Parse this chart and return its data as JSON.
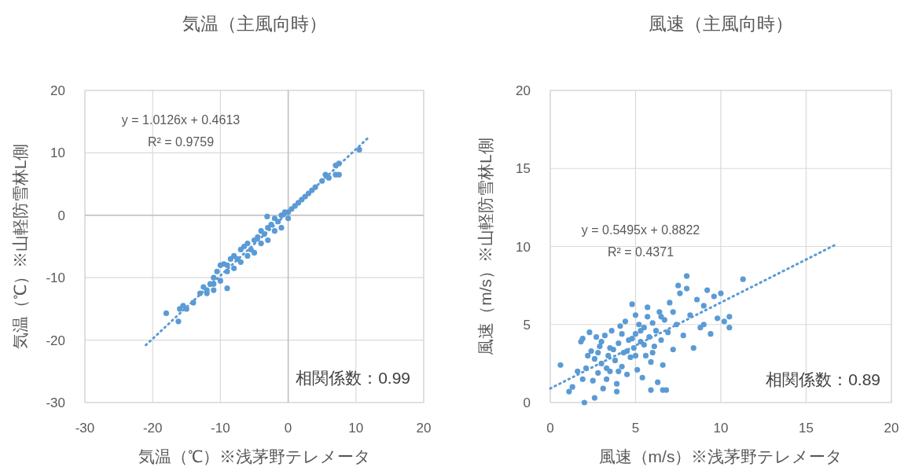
{
  "chart_data": [
    {
      "type": "scatter",
      "title": "気温（主風向時）",
      "xlabel": "気温（℃）※浅茅野テレメータ",
      "ylabel": "気温（℃）※山軽防雪林L側",
      "xlim": [
        -30,
        20
      ],
      "ylim": [
        -30,
        20
      ],
      "xticks": [
        -30,
        -20,
        -10,
        0,
        10,
        20
      ],
      "yticks": [
        -30,
        -20,
        -10,
        0,
        10,
        20
      ],
      "grid": true,
      "annotations": [
        "y = 1.0126x + 0.4613",
        "R² = 0.9759",
        "相関係数：0.99"
      ],
      "series": [
        {
          "color": "#5b9bd5",
          "marker": "circle",
          "x": [
            -18,
            -16.2,
            -16,
            -15.5,
            -15,
            -14,
            -13,
            -12.5,
            -12,
            -12,
            -11.5,
            -11,
            -11,
            -11,
            -10.5,
            -10,
            -10,
            -9.5,
            -9,
            -9,
            -9,
            -8.5,
            -8,
            -8,
            -7.5,
            -7,
            -7,
            -6.5,
            -6,
            -6,
            -5.5,
            -5,
            -5,
            -4.5,
            -4,
            -4,
            -3.5,
            -3.1,
            -3,
            -3,
            -2.5,
            -2,
            -2,
            -1.5,
            -1,
            -1,
            -0.5,
            0,
            0,
            0.5,
            1,
            1.5,
            2,
            2.5,
            3,
            3.5,
            4,
            5,
            5.5,
            6,
            7,
            7.5,
            7,
            7.5,
            10.5
          ],
          "values": [
            -15.7,
            -17,
            -15,
            -14.5,
            -15,
            -14,
            -12.5,
            -11.5,
            -12,
            -12.5,
            -11,
            -10,
            -12,
            -11,
            -9,
            -10.5,
            -8,
            -7.8,
            -9,
            -8,
            -11.7,
            -7,
            -8.5,
            -6.5,
            -7,
            -5.5,
            -7.5,
            -5,
            -6.5,
            -4.5,
            -5.5,
            -4,
            -6,
            -3.5,
            -4.5,
            -2.5,
            -3,
            -0.2,
            -2,
            -4,
            -1.5,
            -2.5,
            -0.5,
            -1,
            0,
            -2,
            0.5,
            0.5,
            -0.5,
            1,
            1.5,
            2,
            2.5,
            3,
            3.5,
            4,
            4.5,
            5.5,
            6.5,
            6,
            8,
            8.3,
            6.5,
            6.5,
            10.5
          ]
        },
        {
          "type": "line",
          "color": "#5b9bd5",
          "line_style": "dotted",
          "x": [
            -21,
            11.7
          ],
          "values": [
            -20.8,
            12.3
          ]
        }
      ]
    },
    {
      "type": "scatter",
      "title": "風速（主風向時）",
      "xlabel": "風速（m/s）※浅茅野テレメータ",
      "ylabel": "風速（m/s）※山軽防雪林L側",
      "xlim": [
        0,
        20
      ],
      "ylim": [
        0,
        20
      ],
      "xticks": [
        0,
        5,
        10,
        15,
        20
      ],
      "yticks": [
        0,
        5,
        10,
        15,
        20
      ],
      "grid": true,
      "annotations": [
        "y = 0.5495x + 0.8822",
        "R² = 0.4371",
        "相関係数：0.89"
      ],
      "series": [
        {
          "color": "#5b9bd5",
          "marker": "circle",
          "x": [
            0.6,
            1.1,
            1.3,
            1.6,
            1.8,
            1.9,
            2.0,
            2.1,
            2.3,
            2.4,
            2.5,
            2.6,
            2.7,
            2.8,
            2.9,
            3.0,
            3.1,
            3.2,
            3.3,
            3.4,
            3.5,
            3.6,
            3.7,
            3.8,
            3.9,
            4.0,
            4.1,
            4.2,
            4.3,
            4.4,
            4.5,
            4.6,
            4.7,
            4.8,
            4.9,
            5.0,
            5.1,
            5.2,
            5.3,
            5.4,
            5.5,
            5.6,
            5.7,
            5.8,
            5.9,
            6.0,
            6.1,
            6.2,
            6.3,
            6.4,
            6.5,
            6.6,
            6.7,
            6.8,
            6.9,
            7.0,
            7.2,
            7.4,
            7.6,
            7.8,
            8.0,
            8.2,
            8.4,
            8.6,
            8.8,
            9.0,
            9.2,
            9.4,
            9.6,
            9.8,
            10.0,
            10.2,
            10.5,
            10.5,
            11.3,
            2.2,
            3.0,
            3.5,
            4.0,
            4.5,
            5.0,
            5.5,
            6.0,
            4.2,
            3.3,
            2.8,
            4.8,
            5.3,
            6.5,
            7.2,
            7.5,
            8.0,
            9.0,
            1.9,
            2.6,
            3.9,
            5.9,
            6.6,
            5.7,
            5.0
          ],
          "values": [
            2.4,
            0.7,
            1.0,
            2.0,
            3.9,
            4.1,
            0.0,
            2.2,
            4.5,
            3.3,
            1.4,
            2.8,
            4.2,
            1.9,
            3.6,
            2.5,
            0.9,
            4.3,
            1.5,
            3.0,
            2.0,
            4.6,
            3.4,
            2.7,
            1.2,
            3.8,
            4.9,
            2.3,
            3.2,
            5.2,
            1.8,
            4.0,
            2.9,
            6.3,
            3.5,
            4.4,
            2.1,
            5.0,
            3.9,
            1.6,
            4.8,
            3.0,
            5.5,
            4.2,
            2.6,
            5.1,
            3.6,
            4.6,
            1.3,
            5.8,
            4.0,
            2.4,
            5.3,
            0.8,
            4.5,
            6.4,
            3.4,
            5.0,
            7.0,
            4.3,
            8.1,
            5.6,
            3.5,
            6.6,
            4.8,
            5.0,
            7.2,
            4.4,
            6.8,
            5.4,
            7.0,
            5.2,
            5.5,
            4.8,
            7.9,
            3.0,
            3.9,
            3.5,
            2.0,
            3.3,
            3.0,
            3.7,
            3.2,
            4.4,
            2.2,
            3.2,
            4.1,
            4.6,
            5.5,
            5.8,
            7.5,
            7.3,
            6.2,
            1.5,
            0.3,
            0.7,
            0.8,
            0.8,
            6.1,
            5.6
          ]
        },
        {
          "type": "line",
          "color": "#5b9bd5",
          "line_style": "dotted",
          "x": [
            0,
            16.7
          ],
          "values": [
            0.9,
            10.1
          ]
        }
      ]
    }
  ]
}
